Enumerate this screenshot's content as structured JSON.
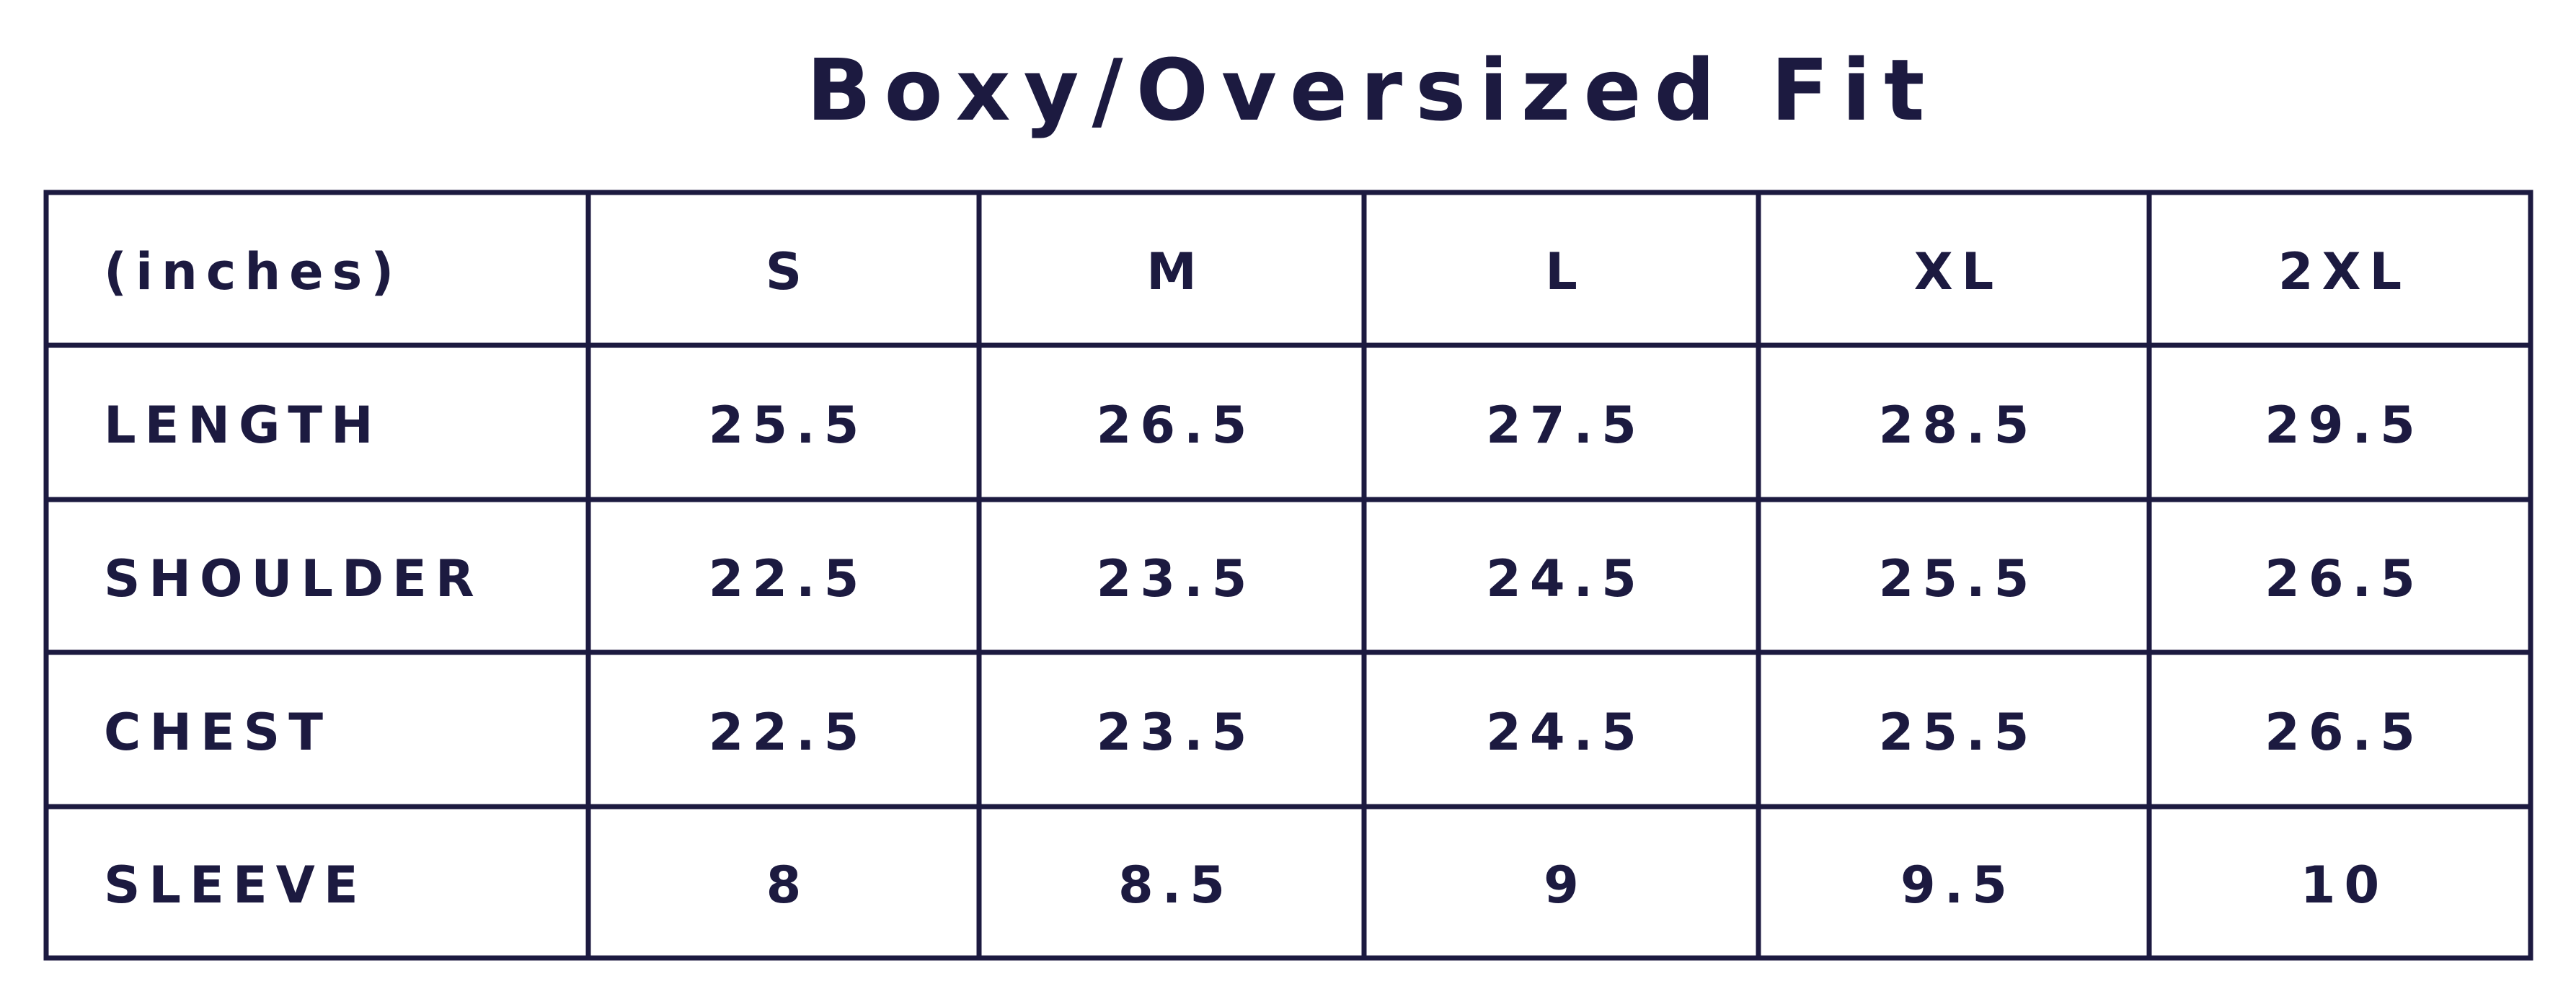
{
  "header": {
    "title": "Boxy/Oversized Fit"
  },
  "table": {
    "columns": [
      "(inches)",
      "S",
      "M",
      "L",
      "XL",
      "2XL"
    ],
    "rows": [
      [
        "LENGTH",
        "25.5",
        "26.5",
        "27.5",
        "28.5",
        "29.5"
      ],
      [
        "SHOULDER",
        "22.5",
        "23.5",
        "24.5",
        "25.5",
        "26.5"
      ],
      [
        "CHEST",
        "22.5",
        "23.5",
        "24.5",
        "25.5",
        "26.5"
      ],
      [
        "SLEEVE",
        "8",
        "8.5",
        "9",
        "9.5",
        "10"
      ]
    ]
  }
}
